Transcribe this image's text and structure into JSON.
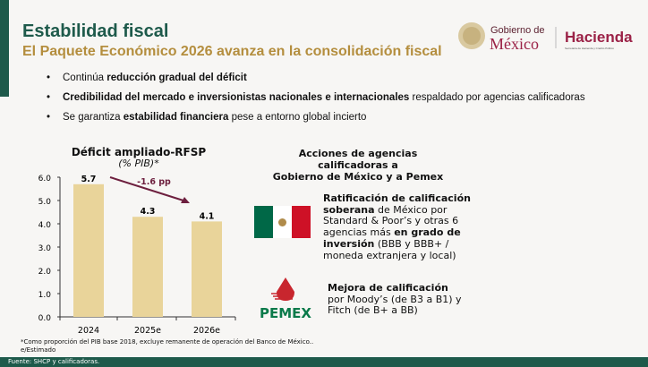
{
  "header": {
    "title": "Estabilidad fiscal",
    "subtitle": "El Paquete Económico 2026 avanza en la consolidación fiscal",
    "logo_gob_line1": "Gobierno de",
    "logo_gob_line2": "México",
    "logo_hacienda": "Hacienda",
    "logo_hacienda_sub": "Secretaría de Hacienda y Crédito Público"
  },
  "bullets": [
    {
      "pre": "Continúa ",
      "bold": "reducción gradual del déficit",
      "post": ""
    },
    {
      "pre": "",
      "bold": "Credibilidad del mercado e inversionistas nacionales e internacionales",
      "post": " respaldado por agencias calificadoras"
    },
    {
      "pre": "Se garantiza ",
      "bold": "estabilidad financiera",
      "post": " pese a entorno global incierto"
    }
  ],
  "chart_data": {
    "type": "bar",
    "title": "Déficit ampliado-RFSP",
    "subtitle": "(% PIB)*",
    "categories": [
      "2024",
      "2025e",
      "2026e"
    ],
    "values": [
      5.7,
      4.3,
      4.1
    ],
    "data_labels": [
      "5.7",
      "4.3",
      "4.1"
    ],
    "ylim": [
      0,
      6
    ],
    "yticks": [
      "0.0",
      "1.0",
      "2.0",
      "3.0",
      "4.0",
      "5.0",
      "6.0"
    ],
    "annotation": "-1.6 pp",
    "bar_color": "#e9d49a",
    "arrow_color": "#6d1f3e",
    "grid": false
  },
  "footnote": [
    "*Como proporción del PIB base 2018, excluye remanente de operación del Banco de México..",
    "e/Estimado"
  ],
  "footer": "Fuente: SHCP y calificadoras.",
  "ratings": {
    "title_l1": "Acciones de agencias calificadoras a",
    "title_l2": "Gobierno de México y a Pemex",
    "sov": {
      "b1": "Ratificación de calificación soberana",
      "t1": " de México por Standard & Poor’s y otras 6 agencias más ",
      "b2": "en grado de inversión",
      "t2": " (BBB y BBB+ / moneda extranjera y local)"
    },
    "pemex": {
      "b1": "Mejora de calificación",
      "t1": "por Moody’s (de B3 a B1) y Fitch (de B+ a BB)",
      "logo": "PEMEX"
    }
  },
  "colors": {
    "green": "#1e5a4b",
    "gold": "#b48e3e",
    "maroon": "#9b2247"
  }
}
